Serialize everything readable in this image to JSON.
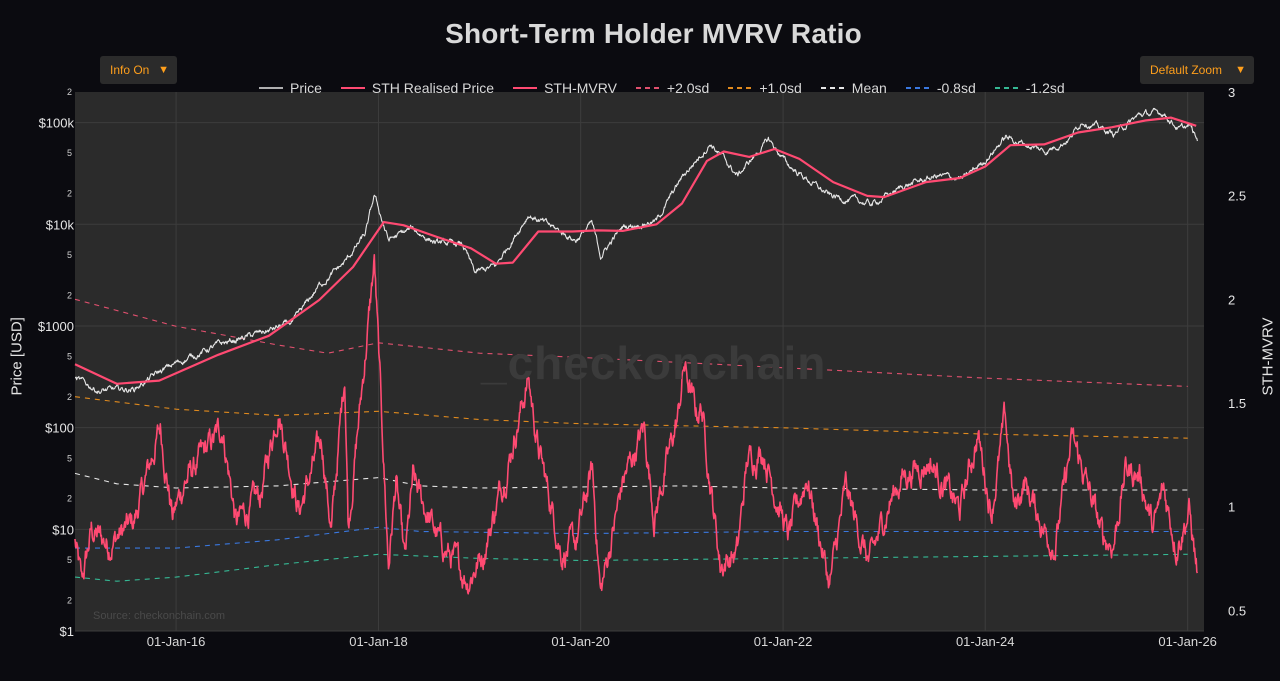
{
  "controls": {
    "info_label": "Info On",
    "zoom_label": "Default Zoom",
    "caret": "▼"
  },
  "watermark": "_checkonchain",
  "source": "Source: checkonchain.com",
  "chart_data": {
    "type": "line",
    "title": "Short-Term Holder MVRV Ratio",
    "ylabel": "Price [USD]",
    "y2label": "STH-MVRV",
    "yscale": "log",
    "ylim": [
      1,
      200000
    ],
    "y2lim": [
      0.4,
      3.0
    ],
    "xlim": [
      "2015-01-01",
      "2026-03-01"
    ],
    "grid": true,
    "legend_position": "top",
    "x_ticks": [
      "01-Jan-16",
      "01-Jan-18",
      "01-Jan-20",
      "01-Jan-22",
      "01-Jan-24",
      "01-Jan-26"
    ],
    "x_tick_dates": [
      "2016-01-01",
      "2018-01-01",
      "2020-01-01",
      "2022-01-01",
      "2024-01-01",
      "2026-01-01"
    ],
    "y_major_ticks": [
      {
        "value": 1,
        "label": "$1"
      },
      {
        "value": 10,
        "label": "$10"
      },
      {
        "value": 100,
        "label": "$100"
      },
      {
        "value": 1000,
        "label": "$1000"
      },
      {
        "value": 10000,
        "label": "$10k"
      },
      {
        "value": 100000,
        "label": "$100k"
      }
    ],
    "y_minor_ticks": [
      {
        "value": 2,
        "label": "2"
      },
      {
        "value": 5,
        "label": "5"
      },
      {
        "value": 20,
        "label": "2"
      },
      {
        "value": 50,
        "label": "5"
      },
      {
        "value": 200,
        "label": "2"
      },
      {
        "value": 500,
        "label": "5"
      },
      {
        "value": 2000,
        "label": "2"
      },
      {
        "value": 5000,
        "label": "5"
      },
      {
        "value": 20000,
        "label": "2"
      },
      {
        "value": 50000,
        "label": "5"
      },
      {
        "value": 200000,
        "label": "2"
      }
    ],
    "y2_ticks": [
      {
        "value": 0.5,
        "label": "0.5"
      },
      {
        "value": 1,
        "label": "1"
      },
      {
        "value": 1.5,
        "label": "1.5"
      },
      {
        "value": 2,
        "label": "2"
      },
      {
        "value": 2.5,
        "label": "2.5"
      },
      {
        "value": 3,
        "label": "3"
      }
    ],
    "series": [
      {
        "name": "Price",
        "axis": "y",
        "color": "#e6e6e6",
        "dash": "solid",
        "noisy": true,
        "points": [
          [
            "2015-01-01",
            300
          ],
          [
            "2015-04-01",
            230
          ],
          [
            "2015-08-01",
            240
          ],
          [
            "2015-11-01",
            350
          ],
          [
            "2016-01-01",
            430
          ],
          [
            "2016-06-01",
            650
          ],
          [
            "2016-12-01",
            900
          ],
          [
            "2017-03-01",
            1100
          ],
          [
            "2017-06-01",
            2500
          ],
          [
            "2017-09-01",
            4200
          ],
          [
            "2017-11-15",
            8000
          ],
          [
            "2017-12-17",
            19000
          ],
          [
            "2018-02-06",
            7000
          ],
          [
            "2018-05-01",
            9000
          ],
          [
            "2018-08-01",
            6500
          ],
          [
            "2018-11-01",
            6300
          ],
          [
            "2018-12-15",
            3300
          ],
          [
            "2019-03-01",
            3900
          ],
          [
            "2019-06-26",
            12500
          ],
          [
            "2019-09-01",
            10000
          ],
          [
            "2019-12-15",
            7000
          ],
          [
            "2020-02-10",
            10200
          ],
          [
            "2020-03-13",
            4900
          ],
          [
            "2020-06-01",
            9500
          ],
          [
            "2020-10-01",
            10800
          ],
          [
            "2021-01-01",
            29000
          ],
          [
            "2021-04-14",
            63000
          ],
          [
            "2021-07-20",
            30000
          ],
          [
            "2021-11-10",
            68000
          ],
          [
            "2022-01-20",
            38000
          ],
          [
            "2022-06-18",
            19000
          ],
          [
            "2022-11-20",
            15800
          ],
          [
            "2023-03-15",
            24000
          ],
          [
            "2023-07-15",
            30000
          ],
          [
            "2023-10-15",
            28000
          ],
          [
            "2024-01-01",
            43000
          ],
          [
            "2024-03-14",
            72000
          ],
          [
            "2024-08-05",
            52000
          ],
          [
            "2024-11-01",
            70000
          ],
          [
            "2024-12-17",
            106000
          ],
          [
            "2025-04-08",
            77000
          ],
          [
            "2025-07-14",
            120000
          ],
          [
            "2025-10-06",
            125000
          ],
          [
            "2025-12-01",
            86000
          ],
          [
            "2026-01-10",
            92000
          ],
          [
            "2026-02-05",
            66000
          ]
        ]
      },
      {
        "name": "STH Realised Price",
        "axis": "y",
        "color": "#ff4a72",
        "dash": "solid",
        "width": 2.2,
        "points": [
          [
            "2015-01-01",
            420
          ],
          [
            "2015-06-01",
            270
          ],
          [
            "2015-11-01",
            290
          ],
          [
            "2016-06-01",
            520
          ],
          [
            "2016-12-01",
            800
          ],
          [
            "2017-06-01",
            1800
          ],
          [
            "2017-10-01",
            3800
          ],
          [
            "2018-01-20",
            10500
          ],
          [
            "2018-04-01",
            9800
          ],
          [
            "2018-08-01",
            7500
          ],
          [
            "2018-12-01",
            5800
          ],
          [
            "2019-03-01",
            4100
          ],
          [
            "2019-05-01",
            4200
          ],
          [
            "2019-08-01",
            8500
          ],
          [
            "2019-12-01",
            8500
          ],
          [
            "2020-03-01",
            8700
          ],
          [
            "2020-06-01",
            8600
          ],
          [
            "2020-10-01",
            10000
          ],
          [
            "2021-01-01",
            16000
          ],
          [
            "2021-04-01",
            42000
          ],
          [
            "2021-06-01",
            52000
          ],
          [
            "2021-09-01",
            46000
          ],
          [
            "2021-12-01",
            55000
          ],
          [
            "2022-03-01",
            44000
          ],
          [
            "2022-07-01",
            26000
          ],
          [
            "2022-11-01",
            19000
          ],
          [
            "2023-01-01",
            18500
          ],
          [
            "2023-06-01",
            26000
          ],
          [
            "2023-10-01",
            28500
          ],
          [
            "2024-01-01",
            37000
          ],
          [
            "2024-04-01",
            60000
          ],
          [
            "2024-08-01",
            61000
          ],
          [
            "2024-12-01",
            80000
          ],
          [
            "2025-04-01",
            90000
          ],
          [
            "2025-08-01",
            105000
          ],
          [
            "2025-11-01",
            112000
          ],
          [
            "2026-02-01",
            93000
          ]
        ]
      },
      {
        "name": "STH-MVRV",
        "axis": "y2",
        "color": "#ff4a72",
        "dash": "solid",
        "noisy": true,
        "width": 1.6,
        "points": [
          [
            "2015-01-01",
            0.83
          ],
          [
            "2015-01-25",
            0.62
          ],
          [
            "2015-03-01",
            0.88
          ],
          [
            "2015-05-01",
            0.82
          ],
          [
            "2015-08-01",
            0.92
          ],
          [
            "2015-11-05",
            1.38
          ],
          [
            "2015-12-20",
            0.95
          ],
          [
            "2016-02-01",
            1.12
          ],
          [
            "2016-06-17",
            1.38
          ],
          [
            "2016-08-05",
            0.92
          ],
          [
            "2016-11-01",
            1.05
          ],
          [
            "2017-01-04",
            1.48
          ],
          [
            "2017-03-20",
            0.98
          ],
          [
            "2017-06-10",
            1.32
          ],
          [
            "2017-07-15",
            0.88
          ],
          [
            "2017-09-01",
            1.65
          ],
          [
            "2017-09-14",
            0.92
          ],
          [
            "2017-11-01",
            1.55
          ],
          [
            "2017-12-17",
            2.18
          ],
          [
            "2018-02-06",
            0.72
          ],
          [
            "2018-03-05",
            1.12
          ],
          [
            "2018-04-06",
            0.72
          ],
          [
            "2018-05-05",
            1.12
          ],
          [
            "2018-08-14",
            0.82
          ],
          [
            "2018-11-19",
            0.65
          ],
          [
            "2019-01-15",
            0.78
          ],
          [
            "2019-04-15",
            1.22
          ],
          [
            "2019-06-26",
            1.62
          ],
          [
            "2019-08-01",
            1.28
          ],
          [
            "2019-10-25",
            0.78
          ],
          [
            "2019-12-15",
            0.82
          ],
          [
            "2020-02-12",
            1.18
          ],
          [
            "2020-03-13",
            0.58
          ],
          [
            "2020-06-01",
            1.12
          ],
          [
            "2020-08-17",
            1.38
          ],
          [
            "2020-09-23",
            0.95
          ],
          [
            "2020-12-20",
            1.45
          ],
          [
            "2021-01-08",
            1.68
          ],
          [
            "2021-02-20",
            1.45
          ],
          [
            "2021-03-13",
            1.48
          ],
          [
            "2021-05-19",
            0.72
          ],
          [
            "2021-07-20",
            0.78
          ],
          [
            "2021-08-25",
            1.22
          ],
          [
            "2021-10-20",
            1.28
          ],
          [
            "2022-01-20",
            0.85
          ],
          [
            "2022-03-28",
            1.15
          ],
          [
            "2022-06-18",
            0.62
          ],
          [
            "2022-08-15",
            1.08
          ],
          [
            "2022-11-09",
            0.72
          ],
          [
            "2023-01-20",
            1.02
          ],
          [
            "2023-03-10",
            1.15
          ],
          [
            "2023-06-15",
            1.22
          ],
          [
            "2023-10-01",
            0.98
          ],
          [
            "2023-12-05",
            1.35
          ],
          [
            "2024-01-23",
            0.98
          ],
          [
            "2024-03-13",
            1.42
          ],
          [
            "2024-04-15",
            0.98
          ],
          [
            "2024-05-20",
            1.12
          ],
          [
            "2024-08-05",
            0.88
          ],
          [
            "2024-09-10",
            0.82
          ],
          [
            "2024-11-10",
            1.32
          ],
          [
            "2024-12-17",
            1.18
          ],
          [
            "2025-02-28",
            0.85
          ],
          [
            "2025-04-08",
            0.82
          ],
          [
            "2025-05-22",
            1.18
          ],
          [
            "2025-07-14",
            1.15
          ],
          [
            "2025-08-30",
            0.88
          ],
          [
            "2025-10-06",
            1.08
          ],
          [
            "2025-11-21",
            0.82
          ],
          [
            "2026-01-06",
            0.98
          ],
          [
            "2026-02-05",
            0.68
          ]
        ]
      },
      {
        "name": "+2.0sd",
        "axis": "y2",
        "color": "#e0506e",
        "dash": "5,5",
        "points": [
          [
            "2015-01-01",
            2.0
          ],
          [
            "2016-01-01",
            1.87
          ],
          [
            "2017-01-01",
            1.78
          ],
          [
            "2017-07-01",
            1.74
          ],
          [
            "2018-01-01",
            1.79
          ],
          [
            "2019-01-01",
            1.74
          ],
          [
            "2020-01-01",
            1.72
          ],
          [
            "2022-01-01",
            1.67
          ],
          [
            "2024-01-01",
            1.62
          ],
          [
            "2026-01-01",
            1.58
          ]
        ]
      },
      {
        "name": "+1.0sd",
        "axis": "y2",
        "color": "#e08a1e",
        "dash": "5,5",
        "points": [
          [
            "2015-01-01",
            1.53
          ],
          [
            "2016-01-01",
            1.47
          ],
          [
            "2017-01-01",
            1.44
          ],
          [
            "2018-01-01",
            1.46
          ],
          [
            "2019-01-01",
            1.42
          ],
          [
            "2020-01-01",
            1.4
          ],
          [
            "2022-01-01",
            1.38
          ],
          [
            "2024-01-01",
            1.35
          ],
          [
            "2026-01-01",
            1.33
          ]
        ]
      },
      {
        "name": "Mean",
        "axis": "y2",
        "color": "#e6e6e6",
        "dash": "5,5",
        "points": [
          [
            "2015-01-01",
            1.16
          ],
          [
            "2015-06-01",
            1.11
          ],
          [
            "2016-01-01",
            1.09
          ],
          [
            "2017-01-01",
            1.1
          ],
          [
            "2018-01-01",
            1.14
          ],
          [
            "2018-06-01",
            1.1
          ],
          [
            "2019-01-01",
            1.09
          ],
          [
            "2021-01-01",
            1.1
          ],
          [
            "2022-01-01",
            1.09
          ],
          [
            "2024-01-01",
            1.08
          ],
          [
            "2026-01-01",
            1.08
          ]
        ]
      },
      {
        "name": "-0.8sd",
        "axis": "y2",
        "color": "#3a78e0",
        "dash": "5,5",
        "points": [
          [
            "2015-01-01",
            0.8
          ],
          [
            "2016-01-01",
            0.8
          ],
          [
            "2017-01-01",
            0.84
          ],
          [
            "2018-01-01",
            0.9
          ],
          [
            "2018-06-01",
            0.88
          ],
          [
            "2020-01-01",
            0.87
          ],
          [
            "2022-01-01",
            0.88
          ],
          [
            "2024-01-01",
            0.88
          ],
          [
            "2026-01-01",
            0.88
          ]
        ]
      },
      {
        "name": "-1.2sd",
        "axis": "y2",
        "color": "#35b894",
        "dash": "5,5",
        "points": [
          [
            "2015-01-01",
            0.66
          ],
          [
            "2015-06-01",
            0.64
          ],
          [
            "2016-01-01",
            0.66
          ],
          [
            "2017-01-01",
            0.72
          ],
          [
            "2018-01-01",
            0.77
          ],
          [
            "2019-01-01",
            0.75
          ],
          [
            "2020-01-01",
            0.74
          ],
          [
            "2022-01-01",
            0.75
          ],
          [
            "2024-01-01",
            0.76
          ],
          [
            "2026-01-01",
            0.77
          ]
        ]
      }
    ]
  }
}
